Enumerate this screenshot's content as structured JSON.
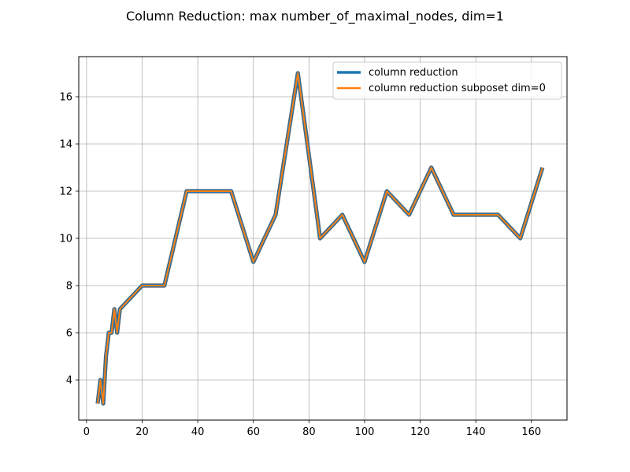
{
  "chart_data": {
    "type": "line",
    "title": "Column Reduction: max number_of_maximal_nodes, dim=1",
    "xlabel": "",
    "ylabel": "",
    "xlim": [
      -2.8,
      172.8
    ],
    "ylim": [
      2.3,
      17.7
    ],
    "xticks": [
      0,
      20,
      40,
      60,
      80,
      100,
      120,
      140,
      160
    ],
    "yticks": [
      4,
      6,
      8,
      10,
      12,
      14,
      16
    ],
    "grid": true,
    "legend_position": "top-right",
    "x": [
      4,
      5,
      6,
      7,
      8,
      9,
      10,
      11,
      12,
      20,
      28,
      36,
      44,
      52,
      60,
      68,
      76,
      84,
      92,
      100,
      108,
      116,
      124,
      132,
      140,
      148,
      156,
      164
    ],
    "series": [
      {
        "name": "column reduction",
        "color": "#1f77b4",
        "values": [
          3,
          4,
          3,
          5,
          6,
          6,
          7,
          6,
          7,
          8,
          8,
          12,
          12,
          12,
          9,
          11,
          17,
          10,
          11,
          9,
          12,
          11,
          13,
          11,
          11,
          11,
          10,
          13
        ]
      },
      {
        "name": "column reduction subposet dim=0",
        "color": "#ff7f0e",
        "values": [
          3,
          4,
          3,
          5,
          6,
          6,
          7,
          6,
          7,
          8,
          8,
          12,
          12,
          12,
          9,
          11,
          17,
          10,
          11,
          9,
          12,
          11,
          13,
          11,
          11,
          11,
          10,
          13
        ]
      }
    ]
  }
}
